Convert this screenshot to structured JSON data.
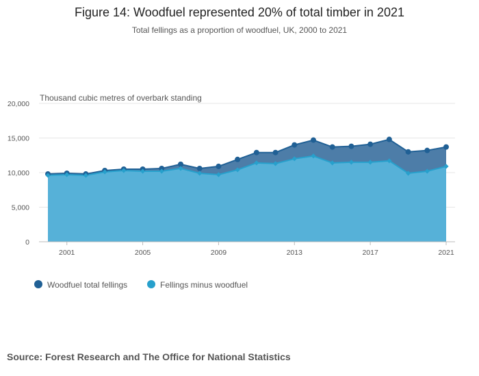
{
  "chart_data": {
    "type": "area",
    "title": "Figure 14: Woodfuel represented 20% of total timber in 2021",
    "subtitle": "Total fellings as a proportion of woodfuel, UK, 2000 to 2021",
    "ylabel": "Thousand cubic metres of overbark standing",
    "xlabel": "",
    "ylim": [
      0,
      20000
    ],
    "yticks": [
      0,
      5000,
      10000,
      15000,
      20000
    ],
    "ytick_labels": [
      "0",
      "5,000",
      "10,000",
      "15,000",
      "20,000"
    ],
    "xticks": [
      2001,
      2005,
      2009,
      2013,
      2017,
      2021
    ],
    "x": [
      2000,
      2001,
      2002,
      2003,
      2004,
      2005,
      2006,
      2007,
      2008,
      2009,
      2010,
      2011,
      2012,
      2013,
      2014,
      2015,
      2016,
      2017,
      2018,
      2019,
      2020,
      2021
    ],
    "series": [
      {
        "name": "Woodfuel total fellings",
        "color": "#206095",
        "values": [
          9800,
          9900,
          9800,
          10300,
          10500,
          10500,
          10600,
          11200,
          10600,
          10900,
          11900,
          12900,
          12900,
          14000,
          14700,
          13700,
          13800,
          14100,
          14800,
          13000,
          13200,
          13700
        ]
      },
      {
        "name": "Fellings minus woodfuel",
        "color": "#27a0cc",
        "values": [
          9600,
          9700,
          9600,
          10100,
          10300,
          10200,
          10200,
          10600,
          9900,
          9700,
          10400,
          11400,
          11300,
          12000,
          12400,
          11400,
          11500,
          11500,
          11700,
          9900,
          10200,
          10900
        ]
      }
    ],
    "grid": true,
    "legend_position": "bottom-left"
  },
  "source": "Source: Forest Research and The Office for National Statistics"
}
